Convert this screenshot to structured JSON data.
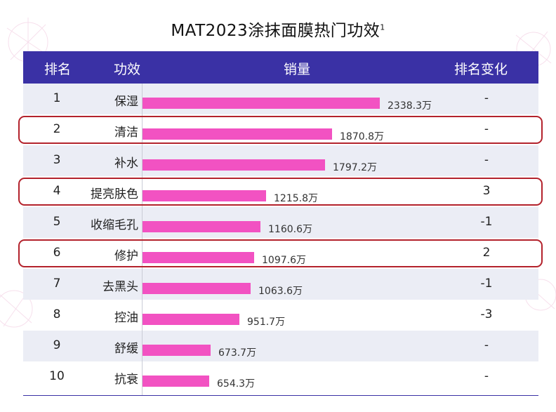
{
  "title": "MAT2023涂抹面膜热门功效",
  "title_sup": "1",
  "header": {
    "rank": "排名",
    "effect": "功效",
    "sales": "销量",
    "change": "排名变化"
  },
  "colors": {
    "header_bg": "#3a31a5",
    "bar": "#f252c2",
    "highlight": "#b3222c",
    "alt_row": "#ebedf5"
  },
  "chart_data": {
    "type": "bar",
    "orientation": "horizontal",
    "unit": "万",
    "rows": [
      {
        "rank": "1",
        "effect": "保湿",
        "value": 2338.3,
        "label": "2338.3万",
        "change": "-",
        "highlight": false
      },
      {
        "rank": "2",
        "effect": "清洁",
        "value": 1870.8,
        "label": "1870.8万",
        "change": "-",
        "highlight": true
      },
      {
        "rank": "3",
        "effect": "补水",
        "value": 1797.2,
        "label": "1797.2万",
        "change": "-",
        "highlight": false
      },
      {
        "rank": "4",
        "effect": "提亮肤色",
        "value": 1215.8,
        "label": "1215.8万",
        "change": "3",
        "highlight": true
      },
      {
        "rank": "5",
        "effect": "收缩毛孔",
        "value": 1160.6,
        "label": "1160.6万",
        "change": "-1",
        "highlight": false
      },
      {
        "rank": "6",
        "effect": "修护",
        "value": 1097.6,
        "label": "1097.6万",
        "change": "2",
        "highlight": true
      },
      {
        "rank": "7",
        "effect": "去黑头",
        "value": 1063.6,
        "label": "1063.6万",
        "change": "-1",
        "highlight": false
      },
      {
        "rank": "8",
        "effect": "控油",
        "value": 951.7,
        "label": "951.7万",
        "change": "-3",
        "highlight": false
      },
      {
        "rank": "9",
        "effect": "舒缓",
        "value": 673.7,
        "label": "673.7万",
        "change": "-",
        "highlight": false
      },
      {
        "rank": "10",
        "effect": "抗衰",
        "value": 654.3,
        "label": "654.3万",
        "change": "-",
        "highlight": false
      }
    ]
  }
}
